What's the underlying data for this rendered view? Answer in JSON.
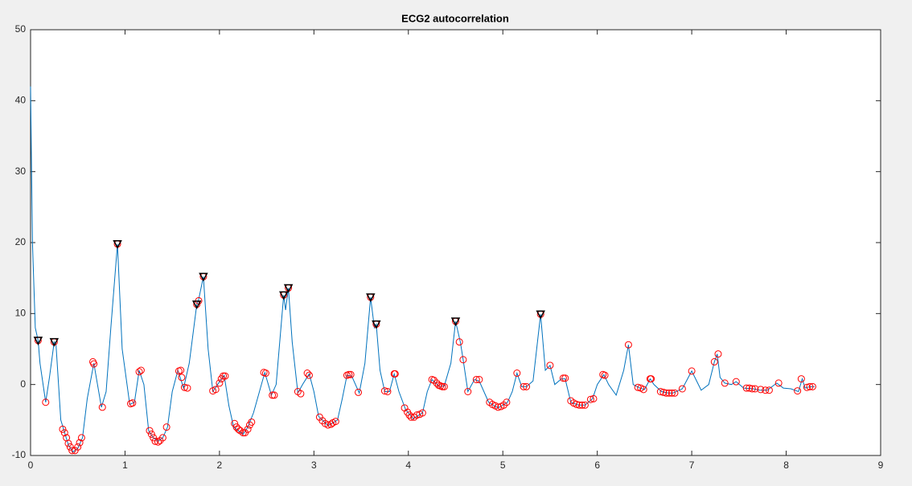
{
  "chart_data": {
    "type": "line",
    "title": "ECG2 autocorrelation",
    "xlim": [
      0,
      9
    ],
    "ylim": [
      -10,
      50
    ],
    "xticks": [
      0,
      1,
      2,
      3,
      4,
      5,
      6,
      7,
      8,
      9
    ],
    "yticks": [
      -10,
      0,
      10,
      20,
      30,
      40,
      50
    ],
    "series": [
      {
        "color": "#0072bd",
        "marker": "none",
        "x": [
          0,
          0.02,
          0.05,
          0.08,
          0.1,
          0.16,
          0.2,
          0.25,
          0.27,
          0.32,
          0.4,
          0.45,
          0.5,
          0.55,
          0.6,
          0.67,
          0.75,
          0.8,
          0.85,
          0.92,
          0.97,
          1.05,
          1.1,
          1.15,
          1.2,
          1.25,
          1.3,
          1.35,
          1.4,
          1.45,
          1.5,
          1.56,
          1.62,
          1.68,
          1.76,
          1.78,
          1.83,
          1.88,
          1.93,
          1.98,
          2.05,
          2.1,
          2.15,
          2.25,
          2.3,
          2.36,
          2.48,
          2.55,
          2.6,
          2.68,
          2.7,
          2.73,
          2.77,
          2.83,
          2.88,
          2.95,
          3.0,
          3.05,
          3.15,
          3.25,
          3.3,
          3.35,
          3.4,
          3.48,
          3.54,
          3.6,
          3.64,
          3.66,
          3.7,
          3.75,
          3.8,
          3.85,
          3.9,
          3.97,
          4.05,
          4.15,
          4.2,
          4.25,
          4.33,
          4.38,
          4.45,
          4.5,
          4.55,
          4.58,
          4.63,
          4.7,
          4.75,
          4.85,
          4.95,
          5.05,
          5.1,
          5.15,
          5.2,
          5.25,
          5.32,
          5.4,
          5.45,
          5.5,
          5.55,
          5.62,
          5.66,
          5.72,
          5.8,
          5.87,
          5.95,
          6.0,
          6.07,
          6.12,
          6.2,
          6.28,
          6.33,
          6.38,
          6.45,
          6.5,
          6.56,
          6.6,
          6.68,
          6.75,
          6.8,
          6.9,
          7.0,
          7.1,
          7.18,
          7.24,
          7.27,
          7.3,
          7.35,
          7.42,
          7.47,
          7.55,
          7.65,
          7.72,
          7.8,
          7.9,
          7.97,
          8.05,
          8.13,
          8.17,
          8.2,
          8.25,
          8.3
        ],
        "values": [
          42,
          20,
          8,
          6.2,
          3,
          -2.5,
          1,
          6,
          5.5,
          -5,
          -8.5,
          -9.5,
          -9,
          -7.5,
          -2,
          3,
          -3.2,
          -1,
          8,
          19.8,
          5,
          -2.8,
          -2.5,
          2,
          0,
          -6.5,
          -7.5,
          -8,
          -7.5,
          -6,
          -1,
          2,
          -0.5,
          3,
          11.3,
          12,
          15.2,
          5,
          -1,
          0,
          1.3,
          -3,
          -6,
          -7,
          -6,
          -4,
          1.7,
          -1.5,
          0,
          12.6,
          10.5,
          13.6,
          6,
          -1.2,
          0,
          1.5,
          -1,
          -4.5,
          -5.8,
          -5,
          -2,
          1.3,
          1.2,
          -1.2,
          3,
          12.3,
          8,
          8.5,
          2,
          -1,
          -1,
          1.5,
          -1,
          -3.5,
          -4.8,
          -4,
          -1,
          0.7,
          -0.3,
          -0.2,
          3,
          8.9,
          6,
          3.5,
          -1,
          0.7,
          0.5,
          -2.5,
          -3.3,
          -2.5,
          -1,
          1.6,
          -0.3,
          -0.3,
          0.5,
          9.9,
          2,
          2.7,
          0,
          0.8,
          0.8,
          -2.5,
          -2.9,
          -2.9,
          -2,
          0,
          1.4,
          0,
          -1.5,
          2,
          5.6,
          0,
          -0.5,
          -0.7,
          0.8,
          0,
          -1,
          -1.2,
          -1.2,
          -0.6,
          1.9,
          -0.8,
          0,
          3.2,
          4.3,
          1,
          0.2,
          0,
          0.4,
          -0.5,
          -0.6,
          -0.8,
          -0.8,
          0.2,
          -0.5,
          -0.6,
          -1,
          0.8,
          -0.5,
          -0.3,
          -0.3
        ]
      },
      {
        "color": "#ff0000",
        "marker": "o",
        "x": [
          0.08,
          0.16,
          0.25,
          0.34,
          0.36,
          0.38,
          0.4,
          0.42,
          0.44,
          0.47,
          0.5,
          0.52,
          0.54,
          0.66,
          0.67,
          0.76,
          0.92,
          1.06,
          1.08,
          1.15,
          1.17,
          1.26,
          1.28,
          1.3,
          1.32,
          1.35,
          1.37,
          1.4,
          1.44,
          1.57,
          1.59,
          1.6,
          1.63,
          1.66,
          1.76,
          1.78,
          1.83,
          1.93,
          1.96,
          2.0,
          2.02,
          2.04,
          2.06,
          2.16,
          2.18,
          2.2,
          2.22,
          2.25,
          2.27,
          2.3,
          2.32,
          2.34,
          2.47,
          2.49,
          2.56,
          2.58,
          2.68,
          2.73,
          2.83,
          2.86,
          2.93,
          2.95,
          3.06,
          3.09,
          3.12,
          3.15,
          3.18,
          3.2,
          3.23,
          3.35,
          3.37,
          3.39,
          3.47,
          3.6,
          3.66,
          3.75,
          3.78,
          3.85,
          3.86,
          3.96,
          3.99,
          4.01,
          4.03,
          4.06,
          4.09,
          4.12,
          4.15,
          4.25,
          4.27,
          4.3,
          4.32,
          4.34,
          4.36,
          4.38,
          4.5,
          4.54,
          4.58,
          4.63,
          4.72,
          4.75,
          4.86,
          4.89,
          4.92,
          4.95,
          4.98,
          5.01,
          5.04,
          5.15,
          5.22,
          5.25,
          5.4,
          5.5,
          5.64,
          5.66,
          5.72,
          5.75,
          5.78,
          5.81,
          5.84,
          5.87,
          5.93,
          5.96,
          6.06,
          6.08,
          6.33,
          6.43,
          6.46,
          6.49,
          6.56,
          6.57,
          6.67,
          6.7,
          6.73,
          6.76,
          6.79,
          6.82,
          6.9,
          7.0,
          7.24,
          7.28,
          7.35,
          7.47,
          7.58,
          7.61,
          7.64,
          7.67,
          7.73,
          7.78,
          7.82,
          7.92,
          8.12,
          8.16,
          8.22,
          8.25,
          8.28
        ],
        "values": [
          6.2,
          -2.5,
          6,
          -6.3,
          -6.8,
          -7.5,
          -8.3,
          -8.8,
          -9.3,
          -9.3,
          -8.8,
          -8.2,
          -7.5,
          3.2,
          2.9,
          -3.2,
          19.8,
          -2.7,
          -2.6,
          1.8,
          2,
          -6.5,
          -7,
          -7.5,
          -8,
          -8.1,
          -7.9,
          -7.5,
          -6,
          1.9,
          2,
          1,
          -0.4,
          -0.5,
          11.3,
          11.8,
          15.2,
          -0.9,
          -0.7,
          0.2,
          0.8,
          1.2,
          1.2,
          -5.5,
          -6,
          -6.3,
          -6.5,
          -6.8,
          -6.8,
          -6.3,
          -5.7,
          -5.3,
          1.7,
          1.6,
          -1.5,
          -1.5,
          12.6,
          13.6,
          -1,
          -1.3,
          1.6,
          1.3,
          -4.6,
          -5.1,
          -5.5,
          -5.7,
          -5.6,
          -5.4,
          -5.2,
          1.3,
          1.4,
          1.4,
          -1.1,
          12.3,
          8.5,
          -0.9,
          -1,
          1.5,
          1.5,
          -3.3,
          -3.9,
          -4.3,
          -4.6,
          -4.6,
          -4.3,
          -4.2,
          -4,
          0.7,
          0.6,
          0.2,
          -0.1,
          -0.2,
          -0.3,
          -0.3,
          8.9,
          6,
          3.5,
          -1,
          0.7,
          0.7,
          -2.5,
          -2.8,
          -3,
          -3.2,
          -3.1,
          -2.9,
          -2.5,
          1.6,
          -0.3,
          -0.3,
          9.9,
          2.7,
          0.9,
          0.9,
          -2.3,
          -2.6,
          -2.8,
          -2.9,
          -2.9,
          -2.9,
          -2.1,
          -2,
          1.4,
          1.3,
          5.6,
          -0.4,
          -0.5,
          -0.7,
          0.8,
          0.8,
          -1,
          -1.1,
          -1.2,
          -1.2,
          -1.2,
          -1.2,
          -0.6,
          1.9,
          3.2,
          4.3,
          0.2,
          0.4,
          -0.5,
          -0.5,
          -0.6,
          -0.6,
          -0.7,
          -0.8,
          -0.8,
          0.2,
          -0.9,
          0.8,
          -0.4,
          -0.3,
          -0.3
        ]
      },
      {
        "color": "#000000",
        "marker": "v",
        "x": [
          0.08,
          0.25,
          0.92,
          1.76,
          1.83,
          2.68,
          2.73,
          3.6,
          3.66,
          4.5,
          5.4
        ],
        "values": [
          6.2,
          6,
          19.8,
          11.3,
          15.2,
          12.6,
          13.6,
          12.3,
          8.5,
          8.9,
          9.9
        ]
      }
    ]
  }
}
